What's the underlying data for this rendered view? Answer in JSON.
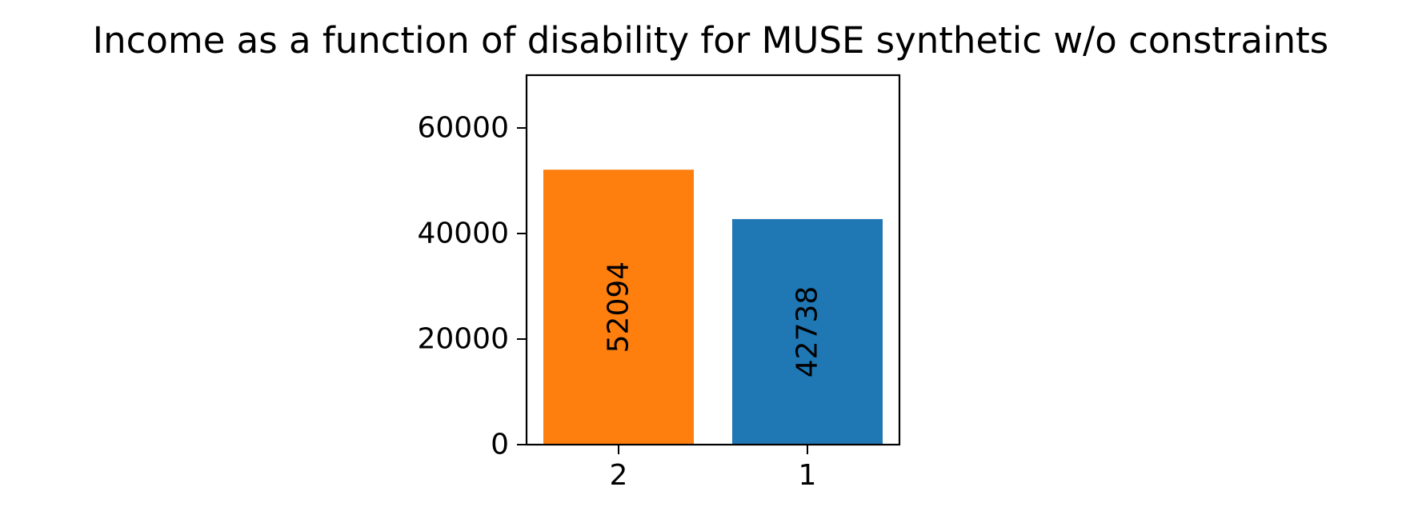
{
  "chart_data": {
    "type": "bar",
    "title": "Income as a function of disability for MUSE synthetic w/o constraints",
    "xlabel": "",
    "ylabel": "",
    "categories": [
      "2",
      "1"
    ],
    "values": [
      52094,
      42738
    ],
    "bar_labels": [
      "52094",
      "42738"
    ],
    "colors": [
      "#ff7f0e",
      "#1f77b4"
    ],
    "ylim": [
      0,
      70000
    ],
    "yticks": [
      0,
      20000,
      40000,
      60000
    ],
    "ytick_labels": [
      "0",
      "20000",
      "40000",
      "60000"
    ],
    "grid": false,
    "legend": false
  }
}
